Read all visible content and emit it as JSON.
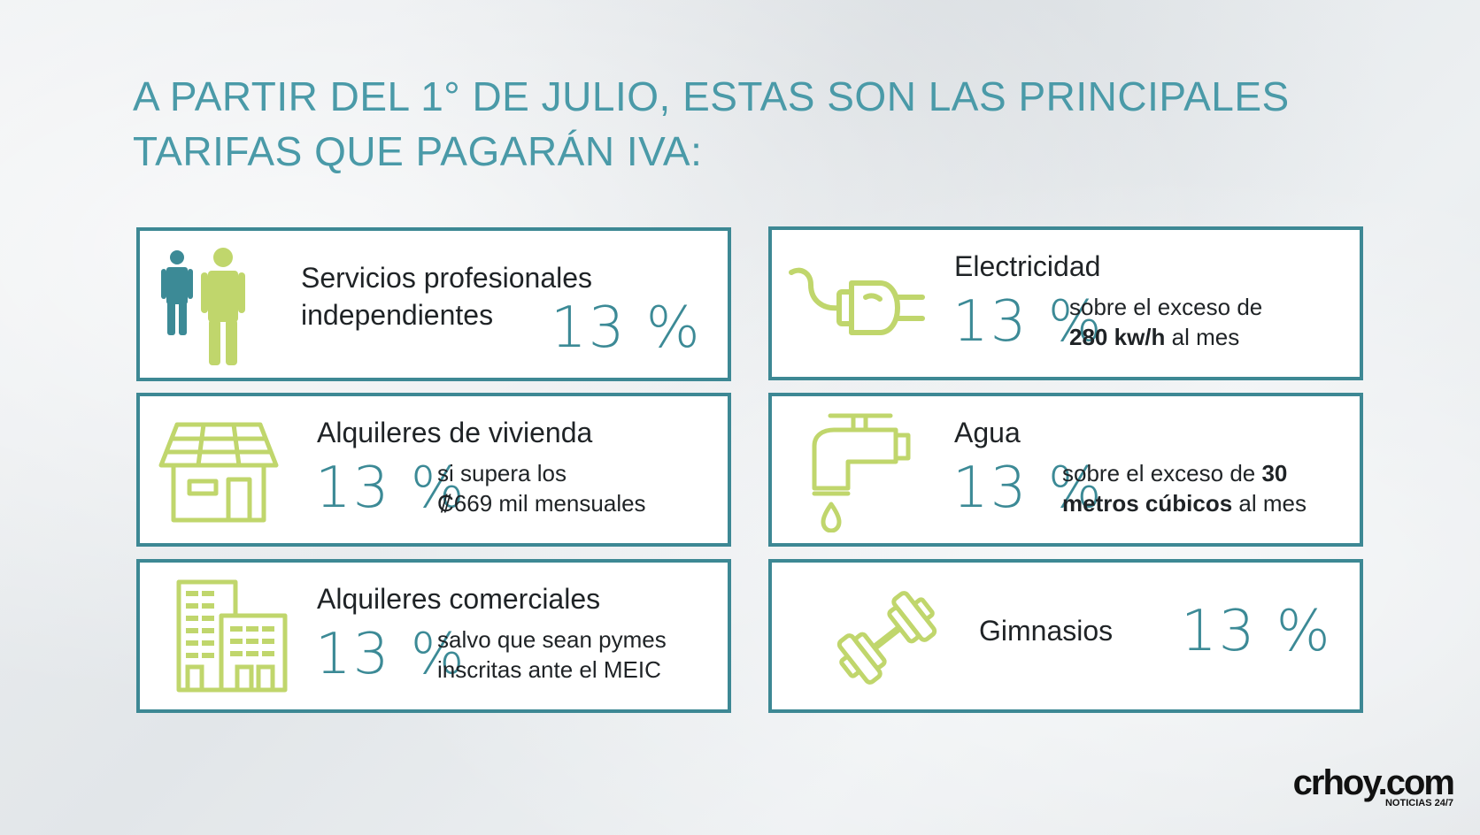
{
  "headline": {
    "line1": "A PARTIR DEL 1° DE JULIO, ESTAS SON LAS PRINCIPALES",
    "line2": "TARIFAS QUE PAGARÁN IVA:"
  },
  "colors": {
    "teal": "#3c8a96",
    "lime": "#c0d66c",
    "border": "#3d8894"
  },
  "cards": {
    "servicios": {
      "icon": "people-icon",
      "title_line1": "Servicios profesionales",
      "title_line2": "independientes",
      "rate": "13 %"
    },
    "electricidad": {
      "icon": "plug-icon",
      "title": "Electricidad",
      "rate": "13 %",
      "desc_line1": "sobre el exceso de",
      "desc_bold": "280 kw/h",
      "desc_line2_rest": " al mes"
    },
    "vivienda": {
      "icon": "house-icon",
      "title": "Alquileres de vivienda",
      "rate": "13 %",
      "desc_line1": "si supera los",
      "desc_line2": "₡669 mil mensuales"
    },
    "agua": {
      "icon": "faucet-icon",
      "title": "Agua",
      "rate": "13 %",
      "desc_line1_start": "sobre el exceso de ",
      "desc_line1_bold": "30",
      "desc_line2_bold": "metros cúbicos",
      "desc_line2_rest": " al mes"
    },
    "comerciales": {
      "icon": "buildings-icon",
      "title": "Alquileres comerciales",
      "rate": "13 %",
      "desc_line1": "salvo que sean pymes",
      "desc_line2": "inscritas ante el MEIC"
    },
    "gimnasios": {
      "icon": "dumbbell-icon",
      "title": "Gimnasios",
      "rate": "13 %"
    }
  },
  "logo": {
    "name": "crhoy.com",
    "tagline": "NOTICIAS 24/7"
  }
}
